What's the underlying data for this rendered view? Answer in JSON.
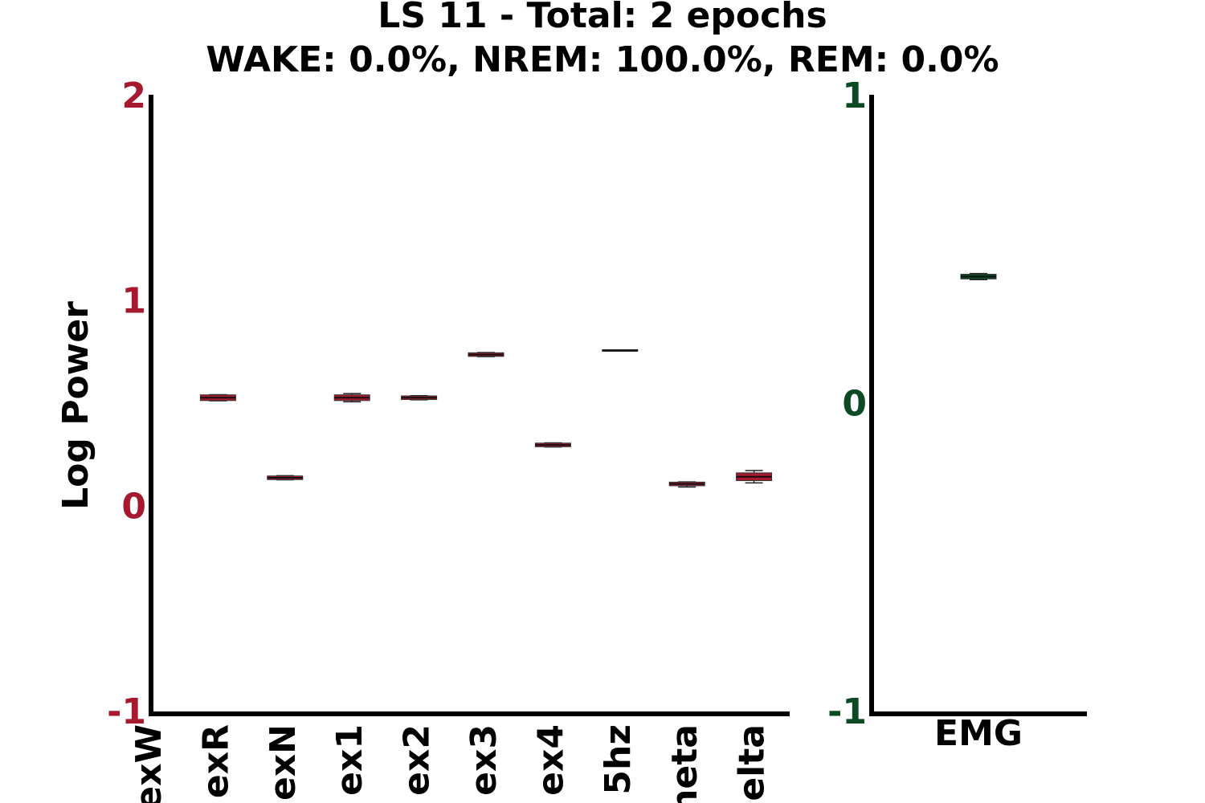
{
  "title": [
    "LS 11 - Total: 2 epochs",
    "WAKE: 0.0%, NREM: 100.0%, REM: 0.0%"
  ],
  "chart_data": [
    {
      "type": "box",
      "ylabel": "Log Power",
      "color": "#a6192e",
      "categories": [
        "exW",
        "exR",
        "exN",
        "ex1",
        "ex2",
        "ex3",
        "ex4",
        "5hz",
        "neta",
        "elta"
      ],
      "whislo": [
        null,
        0.525,
        0.14,
        0.52,
        0.53,
        0.74,
        0.3,
        0.77,
        0.105,
        0.125
      ],
      "q1": [
        null,
        0.53,
        0.145,
        0.53,
        0.535,
        0.745,
        0.305,
        0.77,
        0.115,
        0.14
      ],
      "median": [
        null,
        0.54,
        0.15,
        0.54,
        0.54,
        0.75,
        0.31,
        0.77,
        0.12,
        0.155
      ],
      "q3": [
        null,
        0.55,
        0.155,
        0.55,
        0.545,
        0.755,
        0.315,
        0.77,
        0.125,
        0.17
      ],
      "whishi": [
        null,
        0.555,
        0.16,
        0.56,
        0.55,
        0.76,
        0.32,
        0.77,
        0.13,
        0.185
      ],
      "ylim": [
        -1,
        2
      ],
      "yticks": [
        -1,
        0,
        1,
        2
      ]
    },
    {
      "type": "box",
      "color": "#0b4a22",
      "categories": [
        "EMG"
      ],
      "whislo": [
        0.41
      ],
      "q1": [
        0.415
      ],
      "median": [
        0.42
      ],
      "q3": [
        0.425
      ],
      "whishi": [
        0.43
      ],
      "ylim": [
        -1,
        1
      ],
      "yticks": [
        -1,
        0,
        1
      ]
    }
  ]
}
